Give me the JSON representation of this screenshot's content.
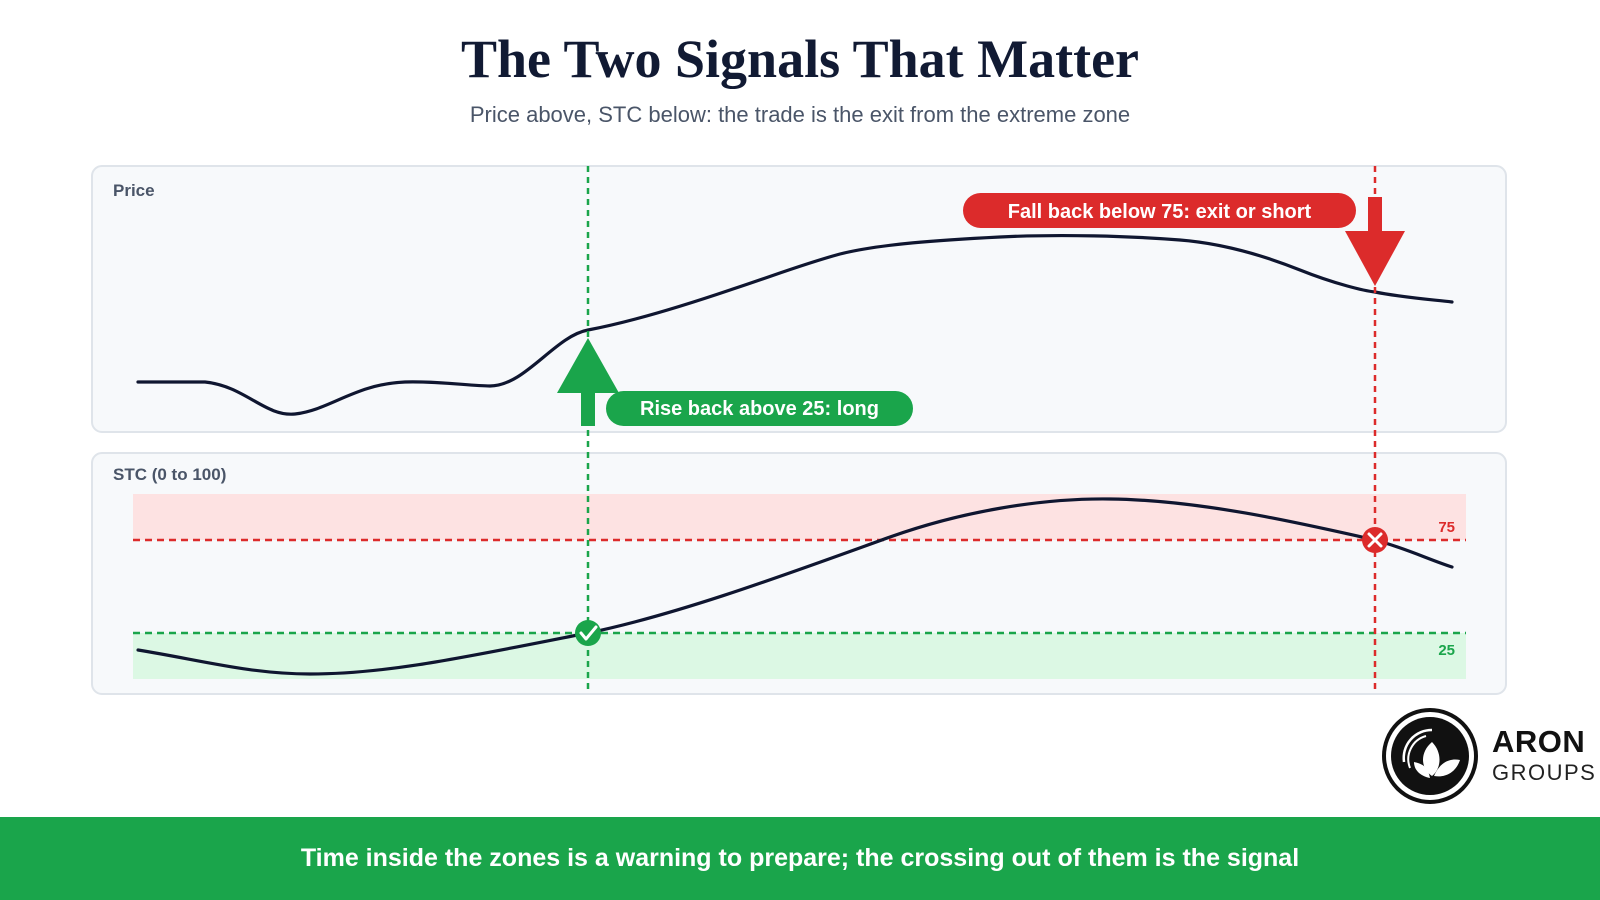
{
  "header": {
    "title": "The Two Signals That Matter",
    "subtitle": "Price above, STC below: the trade is the exit from the extreme zone"
  },
  "price_panel": {
    "label": "Price"
  },
  "stc_panel": {
    "label": "STC (0 to 100)",
    "upper_level": "75",
    "lower_level": "25"
  },
  "signals": {
    "long_label": "Rise back above 25: long",
    "short_label": "Fall back below 75: exit or short"
  },
  "footer": {
    "text": "Time inside the zones is a warning to prepare; the crossing out of them is the signal"
  },
  "logo": {
    "name": "ARON",
    "sub": "GROUPS"
  },
  "colors": {
    "title": "#111a33",
    "line": "#0f1630",
    "green": "#1aa54b",
    "red": "#dc2b2b",
    "panel_bg": "#f7f9fb",
    "panel_border": "#dfe4ea",
    "overbought_zone": "#fde2e2",
    "oversold_zone": "#dcf8e4"
  }
}
